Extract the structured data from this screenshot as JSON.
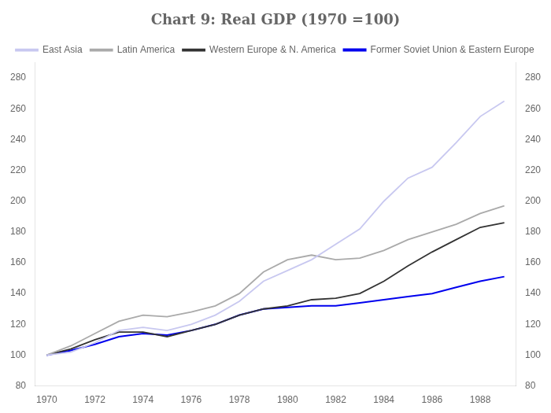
{
  "chart_data": {
    "type": "line",
    "title": "Chart 9: Real GDP (1970 =100)",
    "x": [
      1970,
      1971,
      1972,
      1973,
      1974,
      1975,
      1976,
      1977,
      1978,
      1979,
      1980,
      1981,
      1982,
      1983,
      1984,
      1985,
      1986,
      1987,
      1988,
      1989
    ],
    "series": [
      {
        "name": "East Asia",
        "color": "#c8c8f0",
        "values": [
          100,
          102,
          108,
          116,
          118,
          116,
          120,
          126,
          135,
          148,
          155,
          162,
          172,
          182,
          200,
          215,
          222,
          238,
          255,
          265
        ]
      },
      {
        "name": "Latin America",
        "color": "#aaaaaa",
        "values": [
          100,
          106,
          114,
          122,
          126,
          125,
          128,
          132,
          140,
          154,
          162,
          165,
          162,
          163,
          168,
          175,
          180,
          185,
          192,
          197
        ]
      },
      {
        "name": "Western Europe & N. America",
        "color": "#333333",
        "values": [
          100,
          104,
          110,
          115,
          115,
          112,
          116,
          120,
          126,
          130,
          132,
          136,
          137,
          140,
          148,
          158,
          167,
          175,
          183,
          186
        ]
      },
      {
        "name": "Former Soviet Union & Eastern Europe",
        "color": "#0000ee",
        "values": [
          100,
          103,
          107,
          112,
          114,
          113,
          116,
          120,
          126,
          130,
          131,
          132,
          132,
          134,
          136,
          138,
          140,
          144,
          148,
          151
        ]
      }
    ],
    "xlim": [
      1969.5,
      1989.5
    ],
    "xticks": [
      1970,
      1972,
      1974,
      1976,
      1978,
      1980,
      1982,
      1984,
      1986,
      1988
    ],
    "ylim": [
      80,
      290
    ],
    "yticks": [
      80,
      100,
      120,
      140,
      160,
      180,
      200,
      220,
      240,
      260,
      280
    ],
    "y2lim": [
      80,
      290
    ],
    "y2ticks": [
      80,
      100,
      120,
      140,
      160,
      180,
      200,
      220,
      240,
      260,
      280
    ],
    "grid": false,
    "legend": "upper left"
  }
}
